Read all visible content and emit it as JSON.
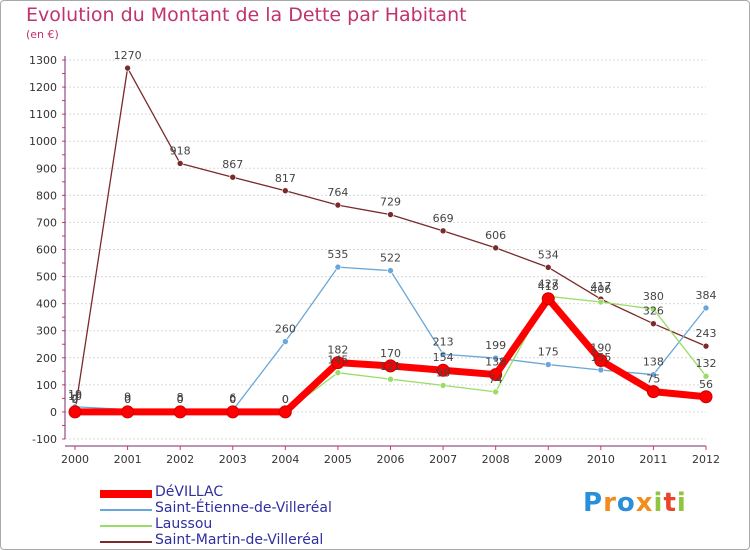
{
  "title": "Evolution du Montant de la Dette par Habitant",
  "subtitle": "(en €)",
  "logo": {
    "text": "Proxiti",
    "colors": [
      "#2a8fd6",
      "#f28c1c",
      "#2a8fd6",
      "#f28c1c",
      "#8dc63f",
      "#e8452c",
      "#8dc63f"
    ]
  },
  "chart_data": {
    "type": "line",
    "title": "Evolution du Montant de la Dette par Habitant",
    "ylabel": "(en €)",
    "x": [
      "2000",
      "2001",
      "2002",
      "2003",
      "2004",
      "2005",
      "2006",
      "2007",
      "2008",
      "2009",
      "2010",
      "2011",
      "2012"
    ],
    "yticks": [
      "-100",
      "0",
      "100",
      "200",
      "300",
      "400",
      "500",
      "600",
      "700",
      "800",
      "900",
      "1000",
      "1100",
      "1200",
      "1300"
    ],
    "ylim": [
      -100,
      1300
    ],
    "grid": "horizontal",
    "series": [
      {
        "name": "DéVILLAC",
        "color": "#ff0000",
        "values": [
          0,
          0,
          0,
          0,
          0,
          182,
          170,
          154,
          138,
          418,
          190,
          75,
          56
        ],
        "labels": [
          "0",
          "0",
          "0",
          "0",
          "0",
          "182",
          "170",
          "154",
          "138",
          "418",
          "190",
          "75",
          "56"
        ]
      },
      {
        "name": "Saint-Étienne-de-Villeréal",
        "color": "#6aa7d8",
        "values": [
          19,
          9,
          8,
          6,
          260,
          535,
          522,
          213,
          199,
          175,
          155,
          138,
          384
        ],
        "labels": [
          "19",
          "9",
          "8",
          "6",
          "260",
          "535",
          "522",
          "213",
          "199",
          "175",
          "155",
          "138",
          "384"
        ]
      },
      {
        "name": "Laussou",
        "color": "#99dd66",
        "values": [
          10,
          0,
          0,
          0,
          0,
          145,
          121,
          98,
          74,
          427,
          406,
          380,
          132
        ],
        "labels": [
          "10",
          "0",
          "0",
          "0",
          "0",
          "145",
          "121",
          "98",
          "74",
          "427",
          "406",
          "380",
          "132"
        ]
      },
      {
        "name": "Saint-Martin-de-Villeréal",
        "color": "#7a2a2a",
        "values": [
          2,
          1270,
          918,
          867,
          817,
          764,
          729,
          669,
          606,
          534,
          417,
          326,
          243
        ],
        "labels": [
          "2",
          "1270",
          "918",
          "867",
          "817",
          "764",
          "729",
          "669",
          "606",
          "534",
          "417",
          "326",
          "243"
        ]
      }
    ]
  }
}
